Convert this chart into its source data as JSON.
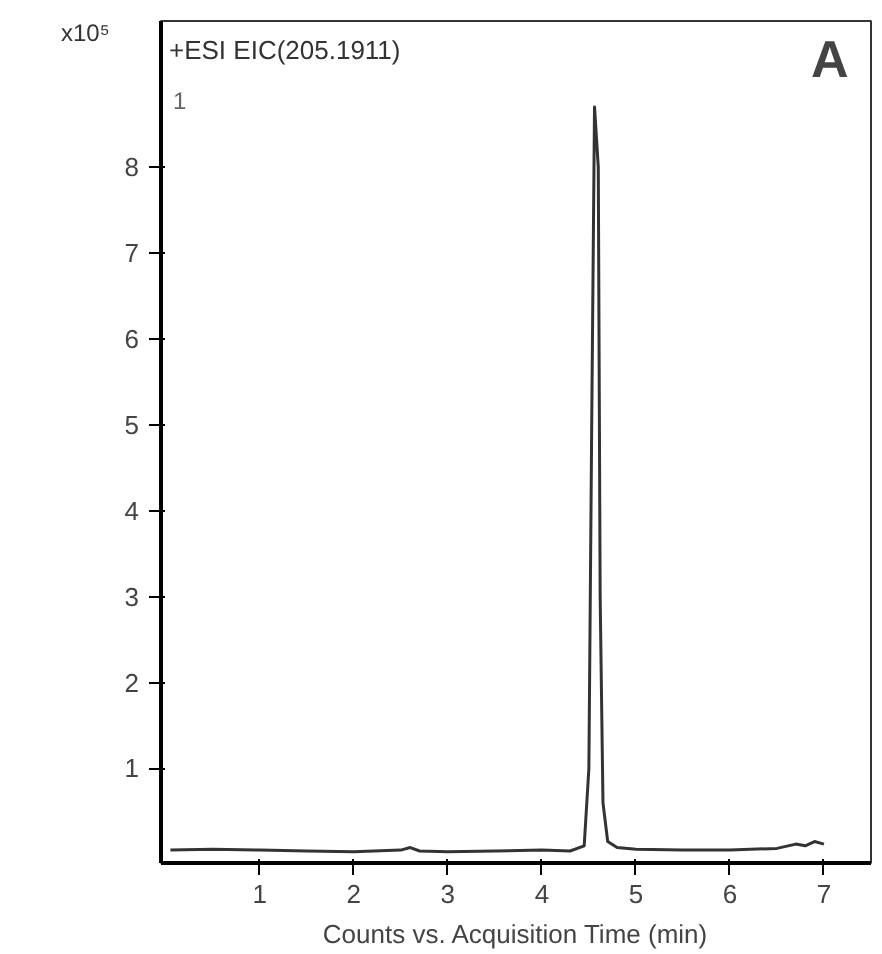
{
  "chart_data": {
    "type": "line",
    "title": "+ESI EIC(205.1911)",
    "xlabel": "Counts vs. Acquisition Time (min)",
    "ylabel": "x10⁵",
    "annotations": [
      "A",
      "1"
    ],
    "x": [
      0.05,
      0.5,
      1.0,
      1.5,
      2.0,
      2.5,
      2.6,
      2.7,
      3.0,
      3.5,
      4.0,
      4.3,
      4.45,
      4.5,
      4.53,
      4.56,
      4.6,
      4.62,
      4.65,
      4.7,
      4.8,
      5.0,
      5.5,
      6.0,
      6.5,
      6.7,
      6.8,
      6.9,
      7.0
    ],
    "series": [
      {
        "color": "#333333",
        "values": [
          0.05,
          0.06,
          0.05,
          0.04,
          0.03,
          0.05,
          0.08,
          0.04,
          0.03,
          0.04,
          0.05,
          0.04,
          0.1,
          1.0,
          5.0,
          8.7,
          8.0,
          3.0,
          0.6,
          0.15,
          0.08,
          0.06,
          0.05,
          0.05,
          0.07,
          0.12,
          0.1,
          0.15,
          0.12
        ]
      }
    ],
    "xlim": [
      -0.05,
      7.5
    ],
    "ylim": [
      -0.1,
      9.7
    ],
    "xticks": [
      1,
      2,
      3,
      4,
      5,
      6,
      7
    ],
    "yticks": [
      1,
      2,
      3,
      4,
      5,
      6,
      7,
      8
    ],
    "grid": false
  }
}
